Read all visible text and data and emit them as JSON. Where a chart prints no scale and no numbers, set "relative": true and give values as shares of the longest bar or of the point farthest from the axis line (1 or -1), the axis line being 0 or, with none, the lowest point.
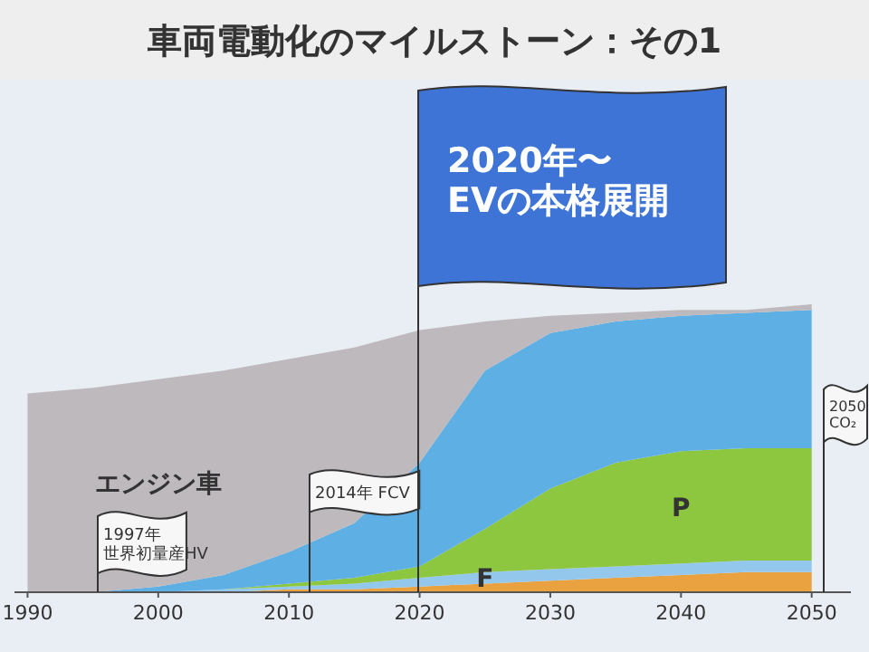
{
  "chart_data": {
    "type": "area",
    "stacked": true,
    "relative": true,
    "title": "車両電動化のマイルストーン：その1",
    "x": [
      1990,
      1995,
      2000,
      2005,
      2010,
      2015,
      2020,
      2025,
      2030,
      2035,
      2040,
      2045,
      2050
    ],
    "xlim": [
      1989,
      2053
    ],
    "xticks": [
      1990,
      2000,
      2010,
      2020,
      2030,
      2040,
      2050
    ],
    "series": [
      {
        "color": "#e9a23f",
        "values": [
          0,
          0,
          0,
          0,
          0.01,
          0.01,
          0.02,
          0.03,
          0.04,
          0.05,
          0.06,
          0.07,
          0.07
        ]
      },
      {
        "name": "F",
        "color": "#93c8ec",
        "values": [
          0,
          0,
          0,
          0.01,
          0.01,
          0.02,
          0.03,
          0.04,
          0.04,
          0.04,
          0.04,
          0.04,
          0.04
        ]
      },
      {
        "name": "P",
        "color": "#8dc63f",
        "values": [
          0,
          0,
          0,
          0,
          0.01,
          0.02,
          0.04,
          0.15,
          0.28,
          0.36,
          0.39,
          0.39,
          0.39
        ]
      },
      {
        "color": "#5eb0e4",
        "values": [
          0,
          0,
          0.02,
          0.05,
          0.11,
          0.19,
          0.36,
          0.55,
          0.54,
          0.49,
          0.47,
          0.47,
          0.48
        ]
      },
      {
        "name": "エンジン車",
        "color": "#bdb9bd",
        "values": [
          0.69,
          0.71,
          0.72,
          0.71,
          0.67,
          0.61,
          0.46,
          0.17,
          0.06,
          0.03,
          0.02,
          0.01,
          0.02
        ]
      }
    ],
    "annotations": [
      "1997年",
      "世界初量産HV",
      "2014年 FCV",
      "2020年〜",
      "EVの本格展開",
      "2050",
      "CO₂"
    ],
    "legend": false,
    "grid": false
  }
}
